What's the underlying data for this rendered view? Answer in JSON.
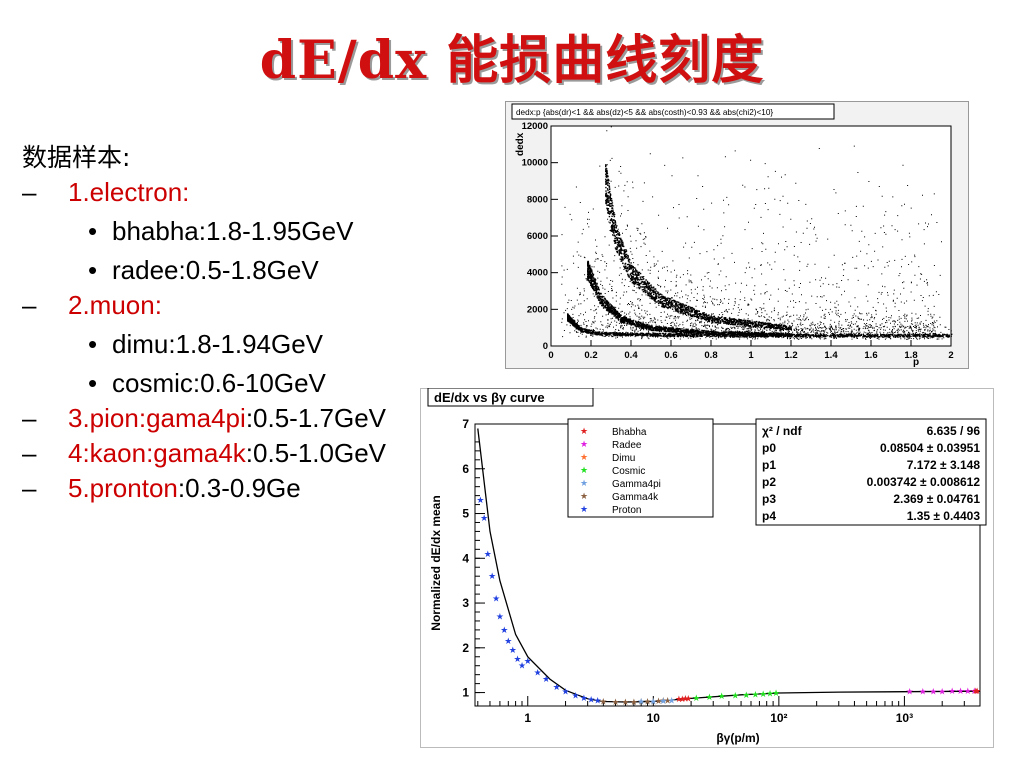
{
  "title": "dE/dx 能损曲线刻度",
  "content": {
    "heading": "数据样本:",
    "items": [
      {
        "label": "1.electron:",
        "rest": "",
        "subs": [
          "bhabha:1.8-1.95GeV",
          " radee:0.5-1.8GeV"
        ]
      },
      {
        "label": "2.muon:",
        "rest": "",
        "subs": [
          "dimu:1.8-1.94GeV",
          "cosmic:0.6-10GeV"
        ]
      },
      {
        "label": "3.pion:gama4pi",
        "rest": ":0.5-1.7GeV",
        "subs": []
      },
      {
        "label": "4:kaon:gama4k",
        "rest": ":0.5-1.0GeV",
        "subs": []
      },
      {
        "label": "5.pronton",
        "rest": ":0.3-0.9Ge",
        "subs": []
      }
    ]
  },
  "chart_data": [
    {
      "type": "scatter",
      "title": "dedx:p {abs(dr)<1 && abs(dz)<5 && abs(costh)<0.93 && abs(chi2)<10}",
      "xlabel": "p",
      "ylabel": "dedx",
      "xlim": [
        0,
        2
      ],
      "ylim": [
        0,
        12000
      ],
      "xticks": [
        "0",
        "0.2",
        "0.4",
        "0.6",
        "0.8",
        "1",
        "1.2",
        "1.4",
        "1.6",
        "1.8",
        "2"
      ],
      "yticks": [
        "0",
        "2000",
        "4000",
        "6000",
        "8000",
        "10000",
        "12000"
      ],
      "bands": [
        {
          "points": [
            [
              0.08,
              1600
            ],
            [
              0.15,
              900
            ],
            [
              0.25,
              700
            ],
            [
              0.5,
              650
            ],
            [
              1.0,
              600
            ],
            [
              2.0,
              600
            ]
          ]
        },
        {
          "points": [
            [
              0.18,
              4200
            ],
            [
              0.25,
              2500
            ],
            [
              0.35,
              1500
            ],
            [
              0.5,
              1000
            ],
            [
              0.8,
              750
            ],
            [
              1.2,
              650
            ]
          ]
        },
        {
          "points": [
            [
              0.27,
              9000
            ],
            [
              0.32,
              6000
            ],
            [
              0.4,
              4000
            ],
            [
              0.55,
              2500
            ],
            [
              0.8,
              1500
            ],
            [
              1.2,
              1000
            ]
          ]
        }
      ]
    },
    {
      "type": "scatter",
      "title": "dE/dx vs βγ curve",
      "xlabel": "βγ(p/m)",
      "ylabel": "Normalized dE/dx mean",
      "x_scale": "log",
      "xlim": [
        0.38,
        4000
      ],
      "ylim": [
        0.7,
        7
      ],
      "xticks": [
        "1",
        "10",
        "10²",
        "10³"
      ],
      "yticks": [
        "1",
        "2",
        "3",
        "4",
        "5",
        "6",
        "7"
      ],
      "legend": [
        "Bhabha",
        "Radee",
        "Dimu",
        "Cosmic",
        "Gamma4pi",
        "Gamma4k",
        "Proton"
      ],
      "series_colors": [
        "#e02020",
        "#e020e0",
        "#ff7030",
        "#20e020",
        "#70a0e0",
        "#8a6040",
        "#2040e0"
      ],
      "stats": [
        {
          "name": "χ² / ndf",
          "value": "6.635 / 96"
        },
        {
          "name": "p0",
          "value": "0.08504 ± 0.03951"
        },
        {
          "name": "p1",
          "value": "7.172 ± 3.148"
        },
        {
          "name": "p2",
          "value": "0.003742 ± 0.008612"
        },
        {
          "name": "p3",
          "value": "2.369 ± 0.04761"
        },
        {
          "name": "p4",
          "value": "1.35 ± 0.4403"
        }
      ],
      "curve": [
        [
          0.4,
          6.9
        ],
        [
          0.5,
          4.6
        ],
        [
          0.6,
          3.5
        ],
        [
          0.8,
          2.3
        ],
        [
          1.0,
          1.8
        ],
        [
          1.5,
          1.3
        ],
        [
          2.0,
          1.05
        ],
        [
          3.0,
          0.86
        ],
        [
          4.0,
          0.8
        ],
        [
          6.0,
          0.79
        ],
        [
          10,
          0.8
        ],
        [
          20,
          0.87
        ],
        [
          50,
          0.95
        ],
        [
          100,
          0.99
        ],
        [
          300,
          1.01
        ],
        [
          1000,
          1.02
        ],
        [
          4000,
          1.03
        ]
      ],
      "series_points": [
        {
          "x": [
            0.42,
            0.45,
            0.48,
            0.52,
            0.56,
            0.6,
            0.65,
            0.7,
            0.76,
            0.83,
            0.9
          ],
          "y": [
            5.3,
            4.9,
            4.1,
            3.6,
            3.1,
            2.7,
            2.4,
            2.15,
            1.95,
            1.75,
            1.6
          ]
        },
        {
          "x": [
            1.0,
            1.2,
            1.4,
            1.7,
            2.0,
            2.4,
            2.8,
            3.2,
            3.6
          ],
          "y": [
            1.7,
            1.45,
            1.3,
            1.12,
            1.02,
            0.93,
            0.88,
            0.84,
            0.82
          ]
        },
        {
          "x": [
            4,
            5,
            6,
            7,
            8,
            9,
            10,
            11,
            12,
            13
          ],
          "y": [
            0.8,
            0.79,
            0.79,
            0.79,
            0.8,
            0.8,
            0.8,
            0.81,
            0.82,
            0.82
          ]
        },
        {
          "x": [
            8,
            10,
            12,
            14
          ],
          "y": [
            0.8,
            0.8,
            0.81,
            0.82
          ]
        },
        {
          "x": [
            16,
            17,
            18,
            19
          ],
          "y": [
            0.86,
            0.86,
            0.87,
            0.87
          ]
        },
        {
          "x": [
            22,
            28,
            35,
            45,
            55,
            65,
            75,
            85,
            95
          ],
          "y": [
            0.88,
            0.9,
            0.92,
            0.94,
            0.95,
            0.96,
            0.97,
            0.98,
            0.99
          ]
        },
        {
          "x": [
            1100,
            1400,
            1700,
            2000,
            2400,
            2800,
            3200,
            3600
          ],
          "y": [
            1.02,
            1.02,
            1.02,
            1.02,
            1.03,
            1.03,
            1.03,
            1.03
          ]
        },
        {
          "x": [
            3700,
            3800
          ],
          "y": [
            1.03,
            1.03
          ]
        }
      ]
    }
  ]
}
